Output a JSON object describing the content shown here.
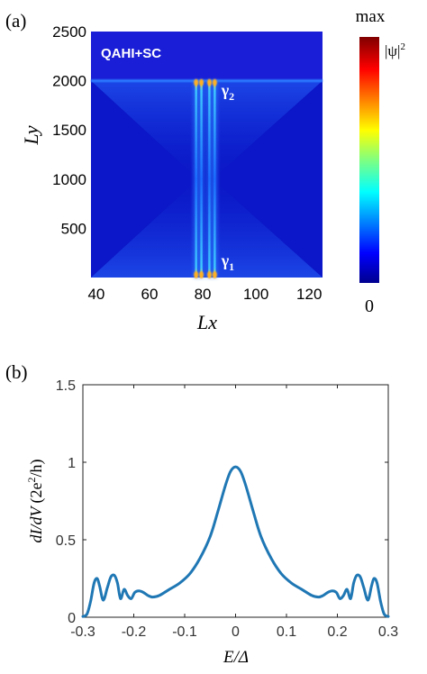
{
  "chart_data": [
    {
      "panel_label": "(a)",
      "type": "heatmap",
      "inset_label": "QAHI+SC",
      "xlabel": "Lx",
      "ylabel": "Ly",
      "xlim": [
        38,
        125
      ],
      "ylim": [
        0,
        2500
      ],
      "xticks": [
        40,
        60,
        80,
        100,
        120
      ],
      "yticks": [
        500,
        1000,
        1500,
        2000,
        2500
      ],
      "colorscale": "jet",
      "colorbar": {
        "max_label": "max",
        "min_label": "0",
        "quantity_label": "|ψ|",
        "quantity_exp": "2"
      },
      "annotations": [
        {
          "text": "γ",
          "subscript": "2",
          "x": 87,
          "y": 1850
        },
        {
          "text": "γ",
          "subscript": "1",
          "x": 87,
          "y": 120
        }
      ],
      "features": {
        "vertical_stripes_x": [
          77.5,
          79.5,
          82.5,
          84.5
        ],
        "edge_y": 2000,
        "domain_boundary_x": [
          79,
          83
        ]
      }
    },
    {
      "panel_label": "(b)",
      "type": "line",
      "xlabel": "E/Δ",
      "ylabel_main": "dI/dV",
      "ylabel_unit": "(2e",
      "ylabel_unit_exp": "2",
      "ylabel_unit_tail": "/h)",
      "xlim": [
        -0.3,
        0.3
      ],
      "ylim": [
        0,
        1.5
      ],
      "xticks": [
        "-0.3",
        "-0.2",
        "-0.1",
        "0",
        "0.1",
        "0.2",
        "0.3"
      ],
      "yticks": [
        "0",
        "0.5",
        "1",
        "1.5"
      ],
      "color": "#1f77b4",
      "x": [
        -0.3,
        -0.292,
        -0.285,
        -0.278,
        -0.272,
        -0.267,
        -0.26,
        -0.252,
        -0.245,
        -0.238,
        -0.232,
        -0.226,
        -0.219,
        -0.212,
        -0.205,
        -0.198,
        -0.19,
        -0.181,
        -0.172,
        -0.163,
        -0.15,
        -0.13,
        -0.11,
        -0.09,
        -0.07,
        -0.05,
        -0.035,
        -0.02,
        -0.01,
        0,
        0.01,
        0.02,
        0.035,
        0.05,
        0.07,
        0.09,
        0.11,
        0.13,
        0.15,
        0.163,
        0.172,
        0.181,
        0.19,
        0.198,
        0.205,
        0.212,
        0.219,
        0.226,
        0.232,
        0.238,
        0.245,
        0.252,
        0.26,
        0.267,
        0.272,
        0.278,
        0.285,
        0.292,
        0.3
      ],
      "y": [
        0.005,
        0.02,
        0.1,
        0.22,
        0.25,
        0.2,
        0.11,
        0.19,
        0.26,
        0.27,
        0.22,
        0.12,
        0.18,
        0.14,
        0.12,
        0.16,
        0.17,
        0.16,
        0.14,
        0.13,
        0.14,
        0.18,
        0.22,
        0.28,
        0.38,
        0.52,
        0.68,
        0.85,
        0.94,
        0.97,
        0.94,
        0.85,
        0.68,
        0.52,
        0.38,
        0.28,
        0.22,
        0.18,
        0.14,
        0.13,
        0.14,
        0.16,
        0.17,
        0.16,
        0.12,
        0.14,
        0.18,
        0.12,
        0.22,
        0.27,
        0.26,
        0.19,
        0.11,
        0.2,
        0.25,
        0.22,
        0.1,
        0.02,
        0.005
      ]
    }
  ]
}
